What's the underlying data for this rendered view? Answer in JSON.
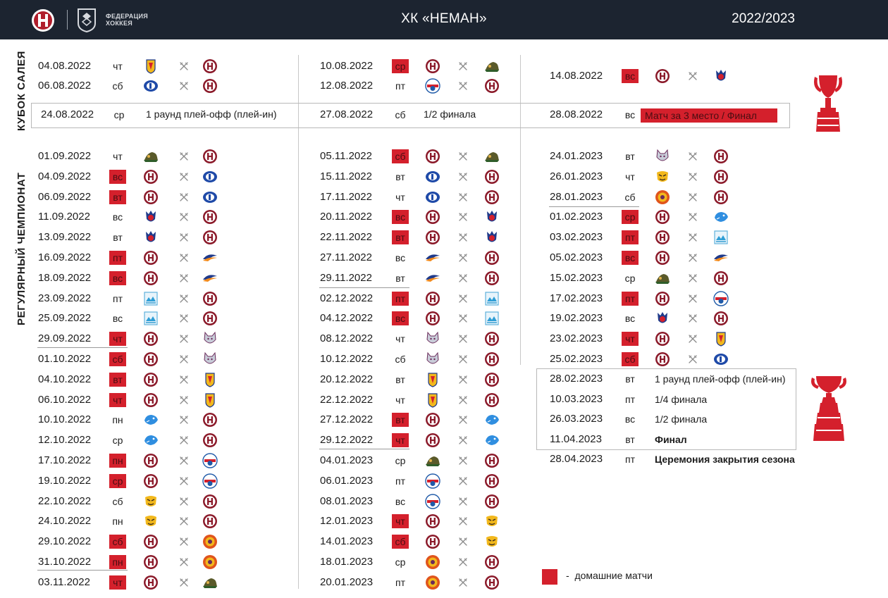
{
  "header": {
    "federation_label": "ФЕДЕРАЦИЯ\nХОККЕЯ",
    "title": "ХК «НЕМАН»",
    "season": "2022/2023"
  },
  "sections": {
    "cup": "КУБОК САЛЕЯ",
    "regular": "РЕГУЛЯРНЫЙ ЧЕМПИОНАТ"
  },
  "colors": {
    "home": "#d4202c",
    "header_bg": "#1c2430",
    "neman": "#8b1a2a"
  },
  "legend": {
    "dash": "-",
    "text": "домашние матчи"
  },
  "cup_games": [
    {
      "date": "04.08.2022",
      "day": "чт",
      "home": false,
      "a": "team-yellow-red",
      "b": "neman"
    },
    {
      "date": "06.08.2022",
      "day": "сб",
      "home": false,
      "a": "team-blue-d",
      "b": "neman"
    },
    {
      "date": "10.08.2022",
      "day": "ср",
      "home": true,
      "a": "neman",
      "b": "team-green-hat"
    },
    {
      "date": "12.08.2022",
      "day": "пт",
      "home": false,
      "a": "team-white-blue",
      "b": "neman"
    },
    {
      "date": "14.08.2022",
      "day": "вс",
      "home": true,
      "a": "neman",
      "b": "team-red-blue-star"
    }
  ],
  "cup_playoff": [
    {
      "date": "24.08.2022",
      "day": "ср",
      "text": "1 раунд плей-офф (плей-ин)",
      "red": false
    },
    {
      "date": "27.08.2022",
      "day": "сб",
      "text": "1/2 финала",
      "red": false
    },
    {
      "date": "28.08.2022",
      "day": "вс",
      "text": "Матч за 3 место  /  Финал",
      "red": true
    }
  ],
  "columns": [
    [
      {
        "date": "01.09.2022",
        "day": "чт",
        "home": false,
        "a": "team-green-hat",
        "b": "neman"
      },
      {
        "date": "04.09.2022",
        "day": "вс",
        "home": true,
        "a": "neman",
        "b": "team-blue-d"
      },
      {
        "date": "06.09.2022",
        "day": "вт",
        "home": true,
        "a": "neman",
        "b": "team-blue-d"
      },
      {
        "date": "11.09.2022",
        "day": "вс",
        "home": false,
        "a": "team-red-blue-star",
        "b": "neman"
      },
      {
        "date": "13.09.2022",
        "day": "вт",
        "home": false,
        "a": "team-red-blue-star",
        "b": "neman"
      },
      {
        "date": "16.09.2022",
        "day": "пт",
        "home": true,
        "a": "neman",
        "b": "team-orange-wave"
      },
      {
        "date": "18.09.2022",
        "day": "вс",
        "home": true,
        "a": "neman",
        "b": "team-orange-wave"
      },
      {
        "date": "23.09.2022",
        "day": "пт",
        "home": false,
        "a": "team-lightblue-sq",
        "b": "neman"
      },
      {
        "date": "25.09.2022",
        "day": "вс",
        "home": false,
        "a": "team-lightblue-sq",
        "b": "neman"
      },
      {
        "date": "29.09.2022",
        "day": "чт",
        "home": true,
        "a": "neman",
        "b": "team-wolf"
      },
      {
        "date": "01.10.2022",
        "day": "сб",
        "home": true,
        "a": "neman",
        "b": "team-wolf"
      },
      {
        "date": "04.10.2022",
        "day": "вт",
        "home": true,
        "a": "neman",
        "b": "team-yellow-red"
      },
      {
        "date": "06.10.2022",
        "day": "чт",
        "home": true,
        "a": "neman",
        "b": "team-yellow-red"
      },
      {
        "date": "10.10.2022",
        "day": "пн",
        "home": false,
        "a": "team-blue-bear",
        "b": "neman"
      },
      {
        "date": "12.10.2022",
        "day": "ср",
        "home": false,
        "a": "team-blue-bear",
        "b": "neman"
      },
      {
        "date": "17.10.2022",
        "day": "пн",
        "home": true,
        "a": "neman",
        "b": "team-white-blue"
      },
      {
        "date": "19.10.2022",
        "day": "ср",
        "home": true,
        "a": "neman",
        "b": "team-white-blue"
      },
      {
        "date": "22.10.2022",
        "day": "сб",
        "home": false,
        "a": "team-tiger",
        "b": "neman"
      },
      {
        "date": "24.10.2022",
        "day": "пн",
        "home": false,
        "a": "team-tiger",
        "b": "neman"
      },
      {
        "date": "29.10.2022",
        "day": "сб",
        "home": true,
        "a": "neman",
        "b": "team-lion"
      },
      {
        "date": "31.10.2022",
        "day": "пн",
        "home": true,
        "a": "neman",
        "b": "team-lion"
      },
      {
        "date": "03.11.2022",
        "day": "чт",
        "home": true,
        "a": "neman",
        "b": "team-green-hat"
      }
    ],
    [
      {
        "date": "05.11.2022",
        "day": "сб",
        "home": true,
        "a": "neman",
        "b": "team-green-hat"
      },
      {
        "date": "15.11.2022",
        "day": "вт",
        "home": false,
        "a": "team-blue-d",
        "b": "neman"
      },
      {
        "date": "17.11.2022",
        "day": "чт",
        "home": false,
        "a": "team-blue-d",
        "b": "neman"
      },
      {
        "date": "20.11.2022",
        "day": "вс",
        "home": true,
        "a": "neman",
        "b": "team-red-blue-star"
      },
      {
        "date": "22.11.2022",
        "day": "вт",
        "home": true,
        "a": "neman",
        "b": "team-red-blue-star"
      },
      {
        "date": "27.11.2022",
        "day": "вс",
        "home": false,
        "a": "team-orange-wave",
        "b": "neman"
      },
      {
        "date": "29.11.2022",
        "day": "вт",
        "home": false,
        "a": "team-orange-wave",
        "b": "neman"
      },
      {
        "date": "02.12.2022",
        "day": "пт",
        "home": true,
        "a": "neman",
        "b": "team-lightblue-sq"
      },
      {
        "date": "04.12.2022",
        "day": "вс",
        "home": true,
        "a": "neman",
        "b": "team-lightblue-sq"
      },
      {
        "date": "08.12.2022",
        "day": "чт",
        "home": false,
        "a": "team-wolf",
        "b": "neman"
      },
      {
        "date": "10.12.2022",
        "day": "сб",
        "home": false,
        "a": "team-wolf",
        "b": "neman"
      },
      {
        "date": "20.12.2022",
        "day": "вт",
        "home": false,
        "a": "team-yellow-red",
        "b": "neman"
      },
      {
        "date": "22.12.2022",
        "day": "чт",
        "home": false,
        "a": "team-yellow-red",
        "b": "neman"
      },
      {
        "date": "27.12.2022",
        "day": "вт",
        "home": true,
        "a": "neman",
        "b": "team-blue-bear"
      },
      {
        "date": "29.12.2022",
        "day": "чт",
        "home": true,
        "a": "neman",
        "b": "team-blue-bear"
      },
      {
        "date": "04.01.2023",
        "day": "ср",
        "home": false,
        "a": "team-green-hat",
        "b": "neman"
      },
      {
        "date": "06.01.2023",
        "day": "пт",
        "home": false,
        "a": "team-white-blue",
        "b": "neman"
      },
      {
        "date": "08.01.2023",
        "day": "вс",
        "home": false,
        "a": "team-white-blue",
        "b": "neman"
      },
      {
        "date": "12.01.2023",
        "day": "чт",
        "home": true,
        "a": "neman",
        "b": "team-tiger"
      },
      {
        "date": "14.01.2023",
        "day": "сб",
        "home": true,
        "a": "neman",
        "b": "team-tiger"
      },
      {
        "date": "18.01.2023",
        "day": "ср",
        "home": false,
        "a": "team-lion",
        "b": "neman"
      },
      {
        "date": "20.01.2023",
        "day": "пт",
        "home": false,
        "a": "team-lion",
        "b": "neman"
      }
    ],
    [
      {
        "date": "24.01.2023",
        "day": "вт",
        "home": false,
        "a": "team-wolf",
        "b": "neman"
      },
      {
        "date": "26.01.2023",
        "day": "чт",
        "home": false,
        "a": "team-tiger",
        "b": "neman"
      },
      {
        "date": "28.01.2023",
        "day": "сб",
        "home": false,
        "a": "team-lion",
        "b": "neman"
      },
      {
        "date": "01.02.2023",
        "day": "ср",
        "home": true,
        "a": "neman",
        "b": "team-blue-bear"
      },
      {
        "date": "03.02.2023",
        "day": "пт",
        "home": true,
        "a": "neman",
        "b": "team-lightblue-sq"
      },
      {
        "date": "05.02.2023",
        "day": "вс",
        "home": true,
        "a": "neman",
        "b": "team-orange-wave"
      },
      {
        "date": "15.02.2023",
        "day": "ср",
        "home": false,
        "a": "team-green-hat",
        "b": "neman"
      },
      {
        "date": "17.02.2023",
        "day": "пт",
        "home": true,
        "a": "neman",
        "b": "team-white-blue"
      },
      {
        "date": "19.02.2023",
        "day": "вс",
        "home": false,
        "a": "team-red-blue-star",
        "b": "neman"
      },
      {
        "date": "23.02.2023",
        "day": "чт",
        "home": true,
        "a": "neman",
        "b": "team-yellow-red"
      },
      {
        "date": "25.02.2023",
        "day": "сб",
        "home": true,
        "a": "neman",
        "b": "team-blue-d"
      }
    ]
  ],
  "playoffs": [
    {
      "date": "28.02.2023",
      "day": "вт",
      "text": "1 раунд плей-офф (плей-ин)",
      "bold": false
    },
    {
      "date": "10.03.2023",
      "day": "пт",
      "text": "1/4 финала",
      "bold": false
    },
    {
      "date": "26.03.2023",
      "day": "вс",
      "text": "1/2 финала",
      "bold": false
    },
    {
      "date": "11.04.2023",
      "day": "вт",
      "text": "Финал",
      "bold": true
    },
    {
      "date": "28.04.2023",
      "day": "пт",
      "text": "Церемония закрытия сезона",
      "bold": true
    }
  ]
}
